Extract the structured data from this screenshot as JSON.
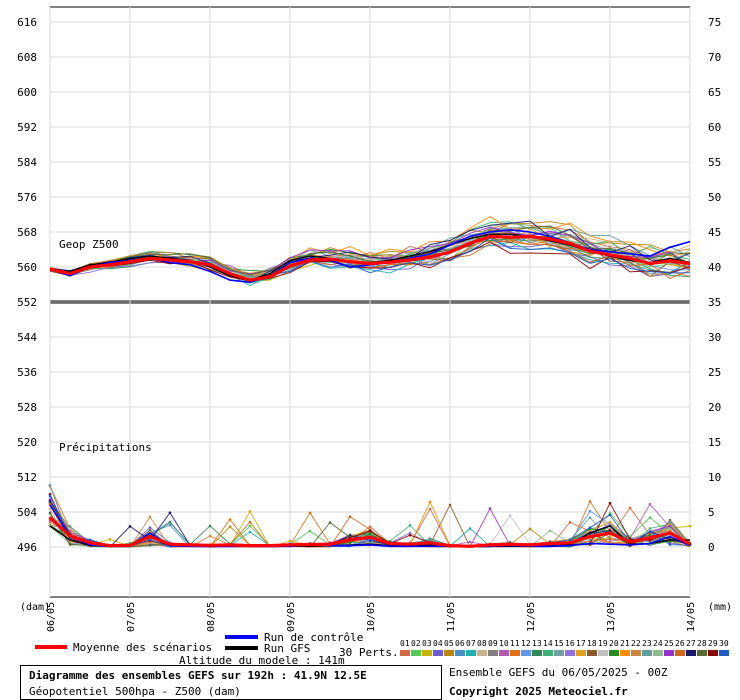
{
  "chart_data": {
    "type": "line",
    "panels": [
      {
        "label": "Geop Z500",
        "unit": "dam",
        "ylim": [
          552,
          576
        ]
      },
      {
        "label": "Précipitations",
        "unit": "mm",
        "ylim": [
          0,
          15
        ]
      }
    ],
    "left_axis": {
      "ticks": [
        616,
        608,
        600,
        592,
        584,
        576,
        568,
        560,
        552,
        544,
        536,
        528,
        520,
        512,
        504,
        496
      ],
      "unit_label": "(dam)"
    },
    "right_axis": {
      "ticks": [
        75,
        70,
        65,
        60,
        55,
        50,
        45,
        40,
        35,
        30,
        25,
        20,
        15,
        10,
        5,
        0
      ],
      "unit_label": "(mm)"
    },
    "x_axis": {
      "ticks": [
        "06/05",
        "07/05",
        "08/05",
        "09/05",
        "10/05",
        "11/05",
        "12/05",
        "13/05",
        "14/05"
      ],
      "step_hours": 6,
      "steps": 33
    },
    "series": [
      {
        "name": "Moyenne des scénarios",
        "z500": [
          559.5,
          558.5,
          560,
          560.5,
          561.2,
          562,
          561.6,
          561.2,
          560.5,
          558.5,
          557,
          557.8,
          560.2,
          561.6,
          561.8,
          561.2,
          560.8,
          561.1,
          561.6,
          562.3,
          563.4,
          565.4,
          567,
          566.8,
          567,
          566.4,
          565.4,
          563.6,
          562.8,
          562,
          560.8,
          561.4,
          560.8
        ],
        "precip": [
          4.2,
          1.6,
          0.6,
          0.2,
          0.25,
          1.5,
          0.4,
          0.3,
          0.25,
          0.3,
          0.2,
          0.2,
          0.3,
          0.35,
          0.4,
          1.0,
          1.4,
          0.5,
          0.4,
          0.6,
          0.2,
          0.1,
          0.3,
          0.4,
          0.3,
          0.5,
          0.6,
          1.5,
          2.0,
          0.7,
          1.3,
          2.0,
          0.4
        ]
      },
      {
        "name": "Run de contrôle",
        "z500": [
          559.5,
          558,
          560,
          561,
          561.5,
          562,
          561,
          560.5,
          559,
          557,
          556.5,
          558,
          561,
          562,
          561.5,
          560,
          560.5,
          561,
          562,
          563,
          565,
          567,
          568,
          568.5,
          568,
          567,
          565.5,
          564,
          563.5,
          563,
          562.5,
          564.5,
          565.8
        ],
        "precip": [
          6,
          1.5,
          0.3,
          0.1,
          0.1,
          2,
          0.2,
          0.1,
          0.1,
          0.1,
          0.1,
          0.1,
          0.1,
          0.3,
          0.2,
          0.2,
          0.3,
          0.1,
          0.1,
          0.1,
          0.1,
          0.1,
          0.1,
          0.2,
          0.1,
          0.1,
          0.2,
          0.5,
          0.4,
          0.3,
          0.5,
          1.5,
          0.2
        ]
      },
      {
        "name": "Run GFS",
        "z500": [
          559.5,
          559,
          560.5,
          561,
          562,
          562.5,
          562,
          561.5,
          560,
          558,
          557,
          558.5,
          561.5,
          562.5,
          562,
          561,
          561,
          561.5,
          562.5,
          563.5,
          565,
          566.5,
          567.5,
          567.5,
          567,
          566,
          565,
          563.5,
          562.5,
          561.5,
          561,
          562,
          561
        ],
        "precip": [
          3,
          1,
          0.2,
          0.1,
          0.1,
          1.5,
          0.2,
          0.1,
          0.1,
          0.1,
          0.1,
          0.1,
          0.1,
          0.1,
          0.2,
          0.3,
          0.4,
          0.2,
          0.1,
          0.3,
          0.1,
          0.1,
          0.1,
          0.1,
          0.1,
          0.2,
          0.4,
          2,
          3,
          0.4,
          0.5,
          1,
          1
        ]
      }
    ],
    "perturbations": {
      "label": "30 Perts.",
      "count": 30
    }
  },
  "legend": {
    "mean": "Moyenne des scénarios",
    "control": "Run de contrôle",
    "gfs": "Run GFS",
    "perts_label": "30 Perts.",
    "pert_numbers": [
      "01",
      "02",
      "03",
      "04",
      "05",
      "06",
      "07",
      "08",
      "09",
      "10",
      "11",
      "12",
      "13",
      "14",
      "15",
      "16",
      "17",
      "18",
      "19",
      "20",
      "21",
      "22",
      "23",
      "24",
      "25",
      "26",
      "27",
      "28",
      "29",
      "30"
    ],
    "pert_colors": [
      "#d46a43",
      "#56c856",
      "#c8b400",
      "#6a5acd",
      "#b8860b",
      "#4a90c8",
      "#20b2aa",
      "#c8b48c",
      "#808080",
      "#b45ab4",
      "#e07010",
      "#6495ed",
      "#2e8b57",
      "#3cb371",
      "#70a0a0",
      "#9370db",
      "#e0a020",
      "#8b5a2b",
      "#c0c0c0",
      "#228b22",
      "#ff8c00",
      "#cd853f",
      "#5f9ea0",
      "#8fbc8f",
      "#9932cc",
      "#d2691e",
      "#191970",
      "#556b2f",
      "#8b0000",
      "#1e5ac8"
    ],
    "colors": {
      "mean": "#ff0000",
      "control": "#0000ff",
      "gfs": "#000000"
    }
  },
  "labels": {
    "geop": "Geop Z500",
    "precip": "Précipitations",
    "altitude": "Altitude du modele : 141m",
    "ensemble": "Ensemble GEFS du 06/05/2025 - 00Z",
    "copyright": "Copyright 2025 Meteociel.fr"
  },
  "info": {
    "title": "Diagramme des ensembles GEFS sur 192h : 41.9N 12.5E",
    "subtitle": "Géopotentiel 500hpa - Z500 (dam)"
  }
}
